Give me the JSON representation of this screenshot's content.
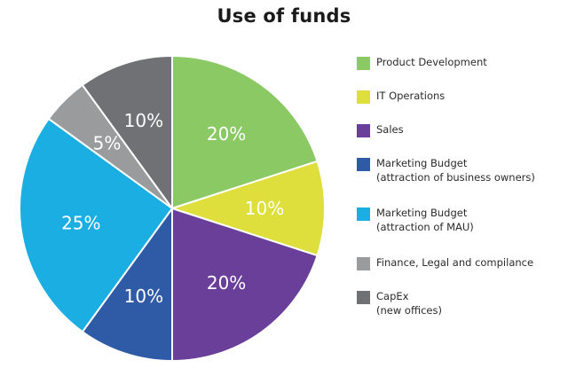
{
  "chart_data": {
    "type": "pie",
    "title": "Use of funds",
    "start_angle_deg": 0,
    "direction": "clockwise",
    "slices": [
      {
        "label": "Product Development",
        "label_lines": [
          "Product Development"
        ],
        "value": 20,
        "display": "20%",
        "color": "#8bc965"
      },
      {
        "label": "IT Operations",
        "label_lines": [
          "IT Operations"
        ],
        "value": 10,
        "display": "10%",
        "color": "#dede3c"
      },
      {
        "label": "Sales",
        "label_lines": [
          "Sales"
        ],
        "value": 20,
        "display": "20%",
        "color": "#6a3f9a"
      },
      {
        "label": "Marketing Budget (attraction of business owners)",
        "label_lines": [
          "Marketing Budget",
          "(attraction of business owners)"
        ],
        "value": 10,
        "display": "10%",
        "color": "#2f5aa6"
      },
      {
        "label": "Marketing Budget (attraction of MAU)",
        "label_lines": [
          "Marketing Budget",
          "(attraction of MAU)"
        ],
        "value": 25,
        "display": "25%",
        "color": "#1aaee3"
      },
      {
        "label": "Finance, Legal and compilance",
        "label_lines": [
          "Finance, Legal and compilance"
        ],
        "value": 5,
        "display": "5%",
        "color": "#9a9b9d"
      },
      {
        "label": "CapEx (new offices)",
        "label_lines": [
          "CapEx",
          "(new offices)"
        ],
        "value": 10,
        "display": "10%",
        "color": "#707174"
      }
    ],
    "legend_position": "right"
  }
}
